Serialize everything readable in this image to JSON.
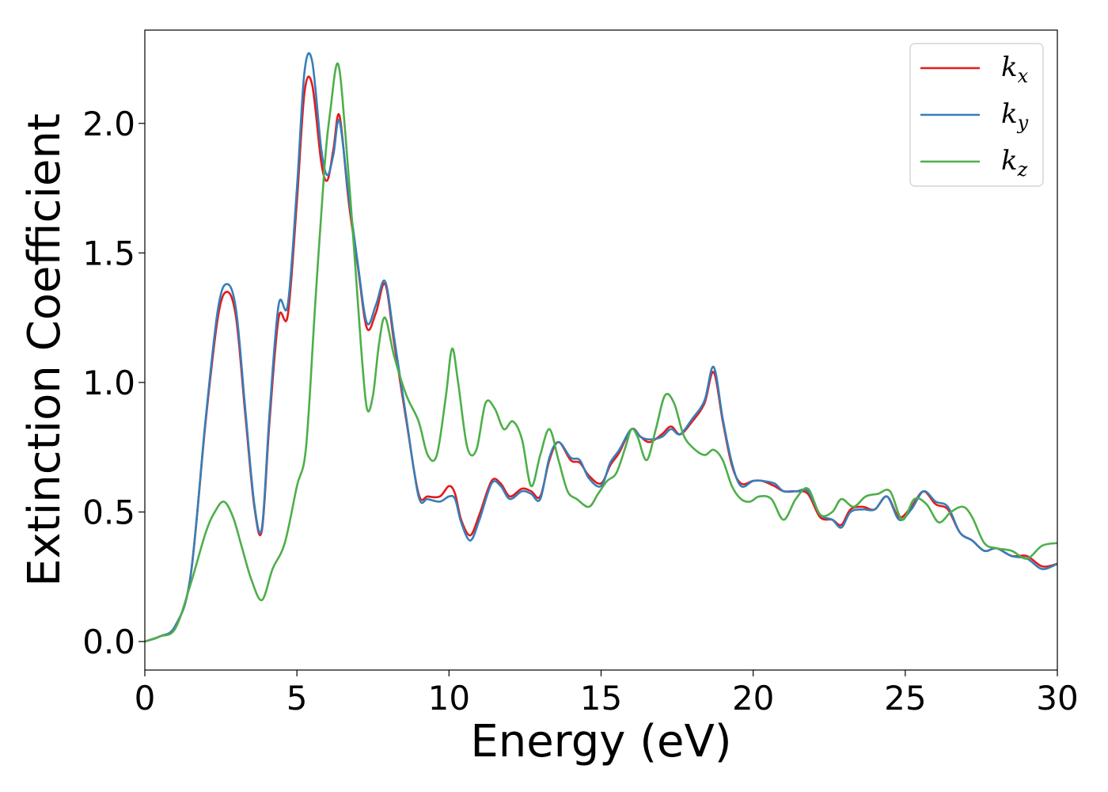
{
  "chart_data": {
    "type": "line",
    "title": "",
    "xlabel": "Energy (eV)",
    "ylabel": "Extinction Coefficient",
    "xlim": [
      0,
      30
    ],
    "ylim": [
      -0.11,
      2.36
    ],
    "xticks": [
      0,
      5,
      10,
      15,
      20,
      25,
      30
    ],
    "xtick_labels": [
      "0",
      "5",
      "10",
      "15",
      "20",
      "25",
      "30"
    ],
    "yticks": [
      0.0,
      0.5,
      1.0,
      1.5,
      2.0
    ],
    "ytick_labels": [
      "0.0",
      "0.5",
      "1.0",
      "1.5",
      "2.0"
    ],
    "grid": false,
    "legend_position": "top-right",
    "series": [
      {
        "name": "k_x",
        "legend_main": "k",
        "legend_sub": "x",
        "color": "#e41a1c",
        "x": [
          0,
          0.5,
          1.0,
          1.5,
          2.0,
          2.4,
          2.7,
          3.0,
          3.3,
          3.6,
          3.85,
          4.1,
          4.4,
          4.7,
          5.0,
          5.25,
          5.5,
          5.8,
          6.0,
          6.2,
          6.4,
          6.7,
          7.0,
          7.3,
          7.6,
          7.9,
          8.2,
          8.6,
          9.0,
          9.3,
          9.7,
          10.0,
          10.2,
          10.4,
          10.7,
          11.0,
          11.4,
          11.7,
          12.0,
          12.4,
          12.7,
          13.0,
          13.3,
          13.6,
          14.0,
          14.3,
          14.6,
          15.0,
          15.3,
          15.6,
          16.0,
          16.3,
          16.6,
          17.0,
          17.3,
          17.6,
          18.0,
          18.4,
          18.7,
          19.0,
          19.3,
          19.6,
          20.0,
          20.3,
          20.7,
          21.0,
          21.4,
          21.8,
          22.2,
          22.6,
          22.9,
          23.2,
          23.6,
          24.0,
          24.4,
          24.8,
          25.2,
          25.6,
          26.0,
          26.4,
          26.8,
          27.2,
          27.6,
          28.0,
          28.5,
          29.0,
          29.5,
          30.0
        ],
        "y": [
          0.0,
          0.02,
          0.06,
          0.25,
          0.85,
          1.25,
          1.35,
          1.25,
          0.88,
          0.52,
          0.43,
          0.85,
          1.25,
          1.26,
          1.7,
          2.12,
          2.15,
          1.85,
          1.78,
          1.9,
          2.03,
          1.7,
          1.45,
          1.21,
          1.27,
          1.38,
          1.15,
          0.85,
          0.57,
          0.56,
          0.56,
          0.6,
          0.57,
          0.47,
          0.41,
          0.49,
          0.62,
          0.61,
          0.56,
          0.59,
          0.58,
          0.56,
          0.7,
          0.77,
          0.7,
          0.69,
          0.64,
          0.61,
          0.68,
          0.73,
          0.82,
          0.79,
          0.77,
          0.8,
          0.83,
          0.8,
          0.85,
          0.92,
          1.04,
          0.85,
          0.68,
          0.61,
          0.62,
          0.62,
          0.6,
          0.58,
          0.58,
          0.57,
          0.48,
          0.47,
          0.45,
          0.51,
          0.52,
          0.51,
          0.56,
          0.48,
          0.52,
          0.58,
          0.53,
          0.51,
          0.42,
          0.39,
          0.35,
          0.36,
          0.33,
          0.33,
          0.29,
          0.3
        ]
      },
      {
        "name": "k_y",
        "legend_main": "k",
        "legend_sub": "y",
        "color": "#377eb8",
        "x": [
          0,
          0.5,
          1.0,
          1.5,
          2.0,
          2.4,
          2.7,
          3.0,
          3.3,
          3.6,
          3.85,
          4.1,
          4.4,
          4.7,
          5.0,
          5.25,
          5.5,
          5.8,
          6.0,
          6.2,
          6.4,
          6.7,
          7.0,
          7.3,
          7.6,
          7.9,
          8.2,
          8.6,
          9.0,
          9.3,
          9.7,
          10.0,
          10.2,
          10.4,
          10.7,
          11.0,
          11.4,
          11.7,
          12.0,
          12.4,
          12.7,
          13.0,
          13.3,
          13.6,
          14.0,
          14.3,
          14.6,
          15.0,
          15.3,
          15.6,
          16.0,
          16.3,
          16.6,
          17.0,
          17.3,
          17.6,
          18.0,
          18.4,
          18.7,
          19.0,
          19.3,
          19.6,
          20.0,
          20.3,
          20.7,
          21.0,
          21.4,
          21.8,
          22.2,
          22.6,
          22.9,
          23.2,
          23.6,
          24.0,
          24.4,
          24.8,
          25.2,
          25.6,
          26.0,
          26.4,
          26.8,
          27.2,
          27.6,
          28.0,
          28.5,
          29.0,
          29.5,
          30.0
        ],
        "y": [
          0.0,
          0.02,
          0.06,
          0.25,
          0.86,
          1.28,
          1.38,
          1.28,
          0.9,
          0.53,
          0.44,
          0.88,
          1.3,
          1.3,
          1.75,
          2.2,
          2.24,
          1.9,
          1.8,
          1.88,
          2.01,
          1.72,
          1.46,
          1.23,
          1.3,
          1.39,
          1.17,
          0.86,
          0.56,
          0.55,
          0.54,
          0.56,
          0.55,
          0.46,
          0.39,
          0.47,
          0.61,
          0.6,
          0.55,
          0.58,
          0.57,
          0.55,
          0.71,
          0.77,
          0.71,
          0.7,
          0.63,
          0.6,
          0.69,
          0.74,
          0.82,
          0.79,
          0.78,
          0.79,
          0.82,
          0.8,
          0.86,
          0.93,
          1.06,
          0.86,
          0.69,
          0.6,
          0.62,
          0.62,
          0.61,
          0.58,
          0.58,
          0.58,
          0.49,
          0.47,
          0.44,
          0.5,
          0.51,
          0.51,
          0.56,
          0.47,
          0.51,
          0.58,
          0.54,
          0.52,
          0.42,
          0.39,
          0.35,
          0.36,
          0.33,
          0.32,
          0.28,
          0.3
        ]
      },
      {
        "name": "k_z",
        "legend_main": "k",
        "legend_sub": "z",
        "color": "#4daf4a",
        "x": [
          0,
          0.5,
          1.0,
          1.5,
          2.0,
          2.3,
          2.6,
          2.9,
          3.2,
          3.5,
          3.85,
          4.2,
          4.6,
          5.0,
          5.3,
          5.6,
          5.9,
          6.1,
          6.35,
          6.6,
          6.9,
          7.1,
          7.3,
          7.5,
          7.7,
          7.9,
          8.2,
          8.6,
          9.0,
          9.3,
          9.6,
          9.9,
          10.1,
          10.3,
          10.6,
          10.9,
          11.2,
          11.5,
          11.8,
          12.1,
          12.4,
          12.7,
          13.0,
          13.3,
          13.6,
          13.9,
          14.2,
          14.6,
          14.9,
          15.2,
          15.5,
          15.8,
          16.0,
          16.2,
          16.5,
          16.8,
          17.1,
          17.4,
          17.7,
          18.0,
          18.4,
          18.7,
          19.0,
          19.3,
          19.6,
          19.9,
          20.2,
          20.6,
          21.0,
          21.4,
          21.8,
          22.2,
          22.6,
          22.9,
          23.3,
          23.7,
          24.1,
          24.5,
          24.9,
          25.3,
          25.7,
          26.1,
          26.5,
          26.9,
          27.2,
          27.6,
          28.0,
          28.5,
          29.0,
          29.5,
          30.0
        ],
        "y": [
          0.0,
          0.02,
          0.05,
          0.22,
          0.42,
          0.5,
          0.54,
          0.48,
          0.36,
          0.24,
          0.16,
          0.28,
          0.38,
          0.6,
          0.75,
          1.3,
          1.82,
          2.05,
          2.23,
          1.95,
          1.48,
          1.15,
          0.9,
          0.95,
          1.15,
          1.25,
          1.1,
          0.95,
          0.85,
          0.72,
          0.72,
          0.95,
          1.13,
          1.0,
          0.75,
          0.74,
          0.92,
          0.9,
          0.82,
          0.85,
          0.78,
          0.6,
          0.72,
          0.82,
          0.7,
          0.58,
          0.55,
          0.52,
          0.57,
          0.62,
          0.65,
          0.75,
          0.82,
          0.79,
          0.7,
          0.82,
          0.95,
          0.92,
          0.8,
          0.75,
          0.72,
          0.74,
          0.7,
          0.6,
          0.55,
          0.54,
          0.56,
          0.55,
          0.47,
          0.55,
          0.59,
          0.49,
          0.5,
          0.55,
          0.52,
          0.56,
          0.57,
          0.58,
          0.47,
          0.55,
          0.53,
          0.46,
          0.5,
          0.52,
          0.48,
          0.38,
          0.36,
          0.35,
          0.32,
          0.37,
          0.38
        ]
      }
    ]
  }
}
